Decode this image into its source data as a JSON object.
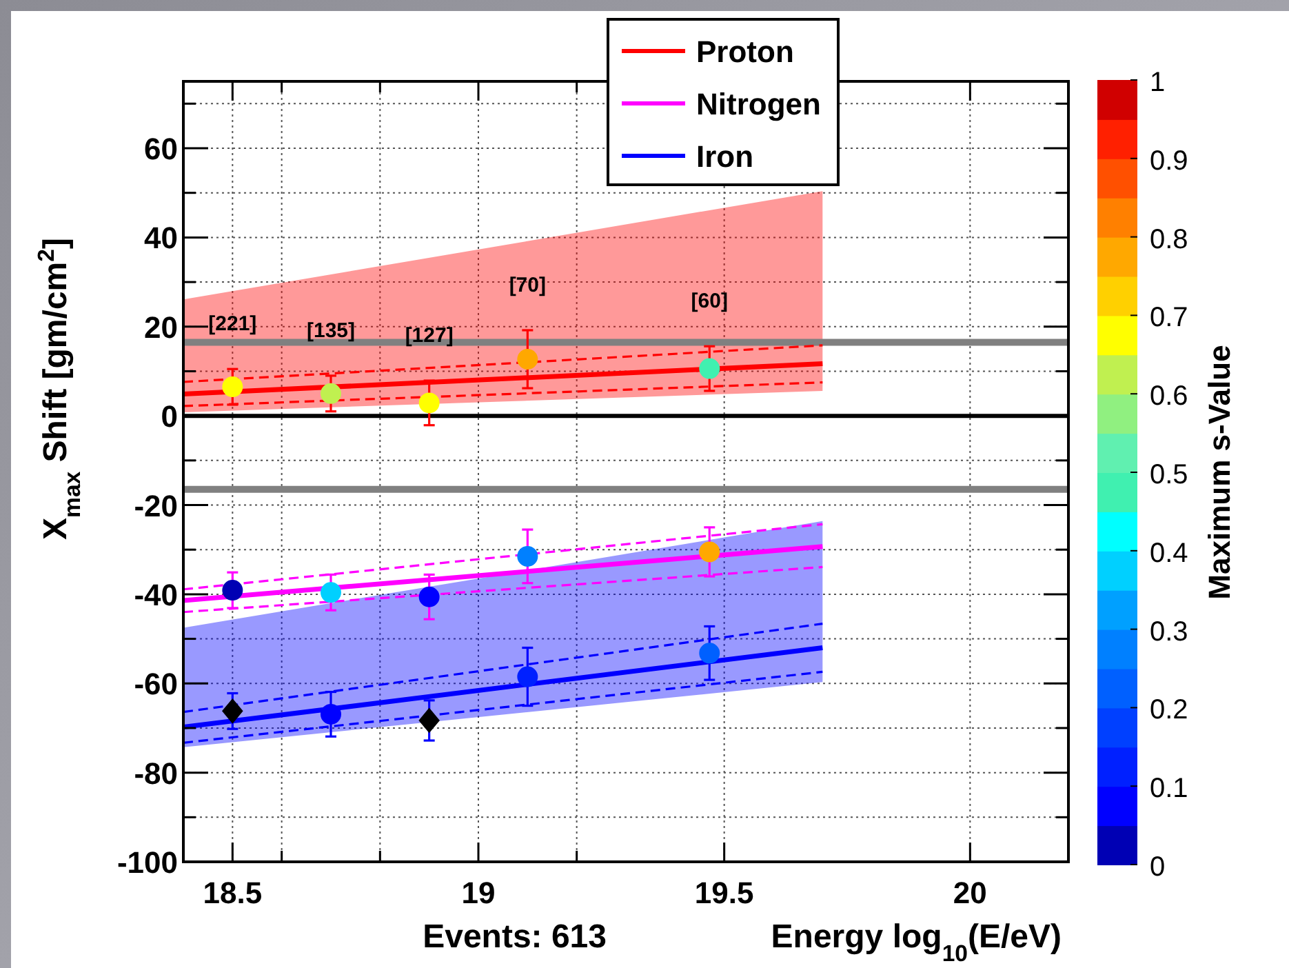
{
  "chart_data": {
    "type": "scatter",
    "xlabel": "Energy  log$_{10}$(E/eV)",
    "ylabel": "X$_{max}$  Shift  [gm/cm$^{2}$]",
    "clabel": "Maximum s-Value",
    "xlim": [
      18.4,
      20.2
    ],
    "ylim": [
      -100,
      75
    ],
    "xticks": [
      18.5,
      {
        "value": 18.6,
        "label": null
      },
      {
        "value": 18.8,
        "label": null
      },
      19,
      {
        "value": 19.2,
        "label": null
      },
      19.5,
      20
    ],
    "yticks": [
      -100,
      {
        "value": -90,
        "label": null
      },
      -80,
      {
        "value": -70,
        "label": null
      },
      -60,
      {
        "value": -50,
        "label": null
      },
      -40,
      {
        "value": -30,
        "label": null
      },
      -20,
      {
        "value": -10,
        "label": null
      },
      0,
      {
        "value": 10,
        "label": null
      },
      20,
      {
        "value": 30,
        "label": null
      },
      40,
      {
        "value": 50,
        "label": null
      },
      60,
      {
        "value": 70,
        "label": null
      }
    ],
    "clim": [
      0,
      1
    ],
    "cticks": [
      0,
      0.1,
      0.2,
      0.3,
      0.4,
      0.5,
      0.6,
      0.7,
      0.8,
      0.9,
      1
    ],
    "grid": true,
    "legend": "top",
    "series": [
      {
        "type": "line",
        "name": "Proton",
        "color": "#ff0000",
        "x": [
          18.4,
          19.7
        ],
        "values": [
          4.9,
          11.7
        ],
        "lower": [
          0.8,
          5.6
        ],
        "upper": [
          26.1,
          50.4
        ]
      },
      {
        "type": "line",
        "color": "#ff0000",
        "line_style": "dashed",
        "x": [
          18.4,
          19.7
        ],
        "values": [
          7.6,
          15.8
        ]
      },
      {
        "type": "line",
        "color": "#ff0000",
        "line_style": "dashed",
        "x": [
          18.4,
          19.7
        ],
        "values": [
          2.2,
          7.5
        ]
      },
      {
        "marker": "circle",
        "x": [
          18.5,
          18.7,
          18.9,
          19.1,
          19.47
        ],
        "values": [
          6.5,
          5,
          2.9,
          12.7,
          10.6
        ],
        "errors": [
          4,
          4,
          5,
          6.5,
          5
        ],
        "cvalues": [
          0.67,
          0.62,
          0.67,
          0.77,
          0.47
        ],
        "colors": [
          "#ffff00",
          "#c0f050",
          "#ffff00",
          "#ffa800",
          "#40f0b0"
        ]
      },
      {
        "type": "line",
        "name": "Nitrogen",
        "color": "#ff00ff",
        "x": [
          18.4,
          19.7
        ],
        "values": [
          -41.4,
          -29.3
        ]
      },
      {
        "type": "line",
        "color": "#ff00ff",
        "line_style": "dashed",
        "x": [
          18.4,
          19.7
        ],
        "values": [
          -38.9,
          -24.3
        ]
      },
      {
        "type": "line",
        "color": "#ff00ff",
        "line_style": "dashed",
        "x": [
          18.4,
          19.7
        ],
        "values": [
          -44,
          -33.9
        ]
      },
      {
        "marker": "circle",
        "x": [
          18.5,
          18.7,
          18.9,
          19.1,
          19.47
        ],
        "values": [
          -39.1,
          -39.6,
          -40.6,
          -31.5,
          -30.5
        ],
        "errors": [
          4,
          4,
          5,
          6,
          5.5
        ],
        "cvalues": [
          0.03,
          0.37,
          0.08,
          0.27,
          0.77
        ],
        "colors": [
          "#0000b4",
          "#00d0ff",
          "#0000ff",
          "#0080ff",
          "#ffa800"
        ]
      },
      {
        "type": "line",
        "name": "Iron",
        "color": "#0000ff",
        "x": [
          18.4,
          19.7
        ],
        "values": [
          -69.8,
          -52
        ],
        "lower": [
          -74.3,
          -59.7
        ],
        "upper": [
          -47.5,
          -23.6
        ]
      },
      {
        "type": "line",
        "color": "#0000ff",
        "line_style": "dashed",
        "x": [
          18.4,
          19.7
        ],
        "values": [
          -66.4,
          -46.6
        ]
      },
      {
        "type": "line",
        "color": "#0000ff",
        "line_style": "dashed",
        "x": [
          18.4,
          19.7
        ],
        "values": [
          -73.3,
          -57.4
        ]
      },
      {
        "marker": "circle",
        "x": [
          18.7,
          19.1,
          19.47
        ],
        "values": [
          -66.9,
          -58.5,
          -53.2
        ],
        "errors": [
          5,
          6.5,
          6
        ],
        "cvalues": [
          0.08,
          0.12,
          0.22
        ],
        "colors": [
          "#0000ff",
          "#0020ff",
          "#0060ff"
        ]
      },
      {
        "marker": "diamond",
        "colors": [
          "#000000",
          "#000000"
        ],
        "x": [
          18.5,
          18.9
        ],
        "values": [
          -66.2,
          -68.3
        ],
        "errors": [
          4,
          4.5
        ]
      }
    ],
    "ref_lines": [
      {
        "axis": "y",
        "value": 16.5,
        "color": "#808080"
      },
      {
        "axis": "y",
        "value": -16.5,
        "color": "#808080"
      },
      {
        "axis": "y",
        "value": 0,
        "color": "#000000"
      }
    ],
    "annotations": [
      "[221]",
      "[135]",
      "[127]",
      "[70]",
      "[60]",
      "Events: 613"
    ]
  }
}
